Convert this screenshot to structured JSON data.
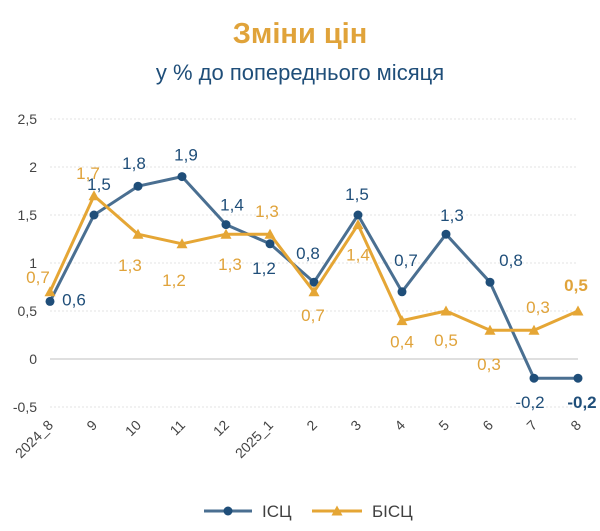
{
  "chart_data": {
    "type": "line",
    "title": "Зміни цін",
    "subtitle": "у % до попереднього місяця",
    "categories": [
      "2024_8",
      "9",
      "10",
      "11",
      "12",
      "2025_1",
      "2",
      "3",
      "4",
      "5",
      "6",
      "7",
      "8"
    ],
    "ylim": [
      -0.5,
      2.5
    ],
    "yticks": [
      "-0,5",
      "0",
      "0,5",
      "1",
      "1,5",
      "2",
      "2,5"
    ],
    "ytick_values": [
      -0.5,
      0,
      0.5,
      1,
      1.5,
      2,
      2.5
    ],
    "grid": true,
    "legend": "bottom",
    "series": [
      {
        "name": "ІСЦ",
        "color": "#4a6f91",
        "marker": "circle",
        "values": [
          0.6,
          1.5,
          1.8,
          1.9,
          1.4,
          1.2,
          0.8,
          1.5,
          0.7,
          1.3,
          0.8,
          -0.2,
          -0.2
        ],
        "labels": [
          "0,6",
          "1,5",
          "1,8",
          "1,9",
          "1,4",
          "1,2",
          "0,8",
          "1,5",
          "0,7",
          "1,3",
          "0,8",
          "-0,2",
          "-0,2"
        ],
        "label_color": "#1f4e79"
      },
      {
        "name": "БІСЦ",
        "color": "#e5a635",
        "marker": "triangle",
        "values": [
          0.7,
          1.7,
          1.3,
          1.2,
          1.3,
          1.3,
          0.7,
          1.4,
          0.4,
          0.5,
          0.3,
          0.3,
          0.5
        ],
        "labels": [
          "0,7",
          "1,7",
          "1,3",
          "1,2",
          "1,3",
          "1,3",
          "0,7",
          "1,4",
          "0,4",
          "0,5",
          "0,3",
          "0,3",
          "0,5"
        ],
        "label_color": "#e0a33a"
      }
    ]
  }
}
